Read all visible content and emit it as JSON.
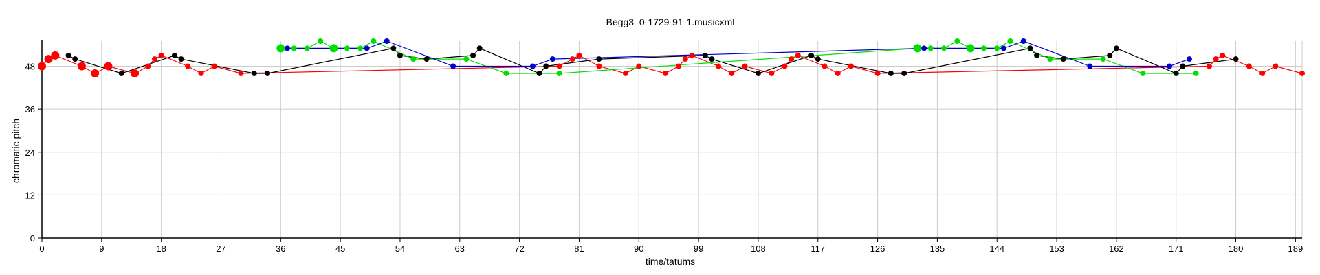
{
  "chart_data": {
    "type": "scatter",
    "title": "Begg3_0-1729-91-1.musicxml",
    "xlabel": "time/tatums",
    "ylabel": "chromatic pitch",
    "xlim": [
      0,
      190
    ],
    "ylim": [
      0,
      55
    ],
    "xticks": [
      0,
      9,
      18,
      27,
      36,
      45,
      54,
      63,
      72,
      81,
      90,
      99,
      108,
      117,
      126,
      135,
      144,
      153,
      162,
      171,
      180,
      189
    ],
    "yticks": [
      0,
      12,
      24,
      36,
      48
    ],
    "grid": true,
    "colors": {
      "red": "#ff0000",
      "black": "#000000",
      "green": "#00e000",
      "blue": "#0000cc",
      "grid": "#cccccc"
    },
    "series": [
      {
        "color": "red",
        "points": [
          [
            0,
            48,
            1
          ],
          [
            1,
            50,
            1
          ],
          [
            2,
            51,
            1
          ],
          [
            6,
            48,
            1
          ],
          [
            8,
            46,
            1
          ],
          [
            10,
            48,
            1
          ],
          [
            14,
            46,
            1
          ],
          [
            16,
            48,
            0
          ],
          [
            17,
            50,
            0
          ],
          [
            18,
            51,
            0
          ],
          [
            22,
            48,
            0
          ],
          [
            24,
            46,
            0
          ],
          [
            26,
            48,
            0
          ],
          [
            30,
            46,
            0
          ],
          [
            78,
            48,
            0
          ],
          [
            80,
            50,
            0
          ],
          [
            81,
            51,
            0
          ],
          [
            84,
            48,
            0
          ],
          [
            88,
            46,
            0
          ],
          [
            90,
            48,
            0
          ],
          [
            94,
            46,
            0
          ],
          [
            96,
            48,
            0
          ],
          [
            97,
            50,
            0
          ],
          [
            98,
            51,
            0
          ],
          [
            102,
            48,
            0
          ],
          [
            104,
            46,
            0
          ],
          [
            106,
            48,
            0
          ],
          [
            110,
            46,
            0
          ],
          [
            112,
            48,
            0
          ],
          [
            113,
            50,
            0
          ],
          [
            114,
            51,
            0
          ],
          [
            118,
            48,
            0
          ],
          [
            120,
            46,
            0
          ],
          [
            122,
            48,
            0
          ],
          [
            126,
            46,
            0
          ],
          [
            176,
            48,
            0
          ],
          [
            177,
            50,
            0
          ],
          [
            178,
            51,
            0
          ],
          [
            182,
            48,
            0
          ],
          [
            184,
            46,
            0
          ],
          [
            186,
            48,
            0
          ],
          [
            190,
            46,
            0
          ]
        ]
      },
      {
        "color": "black",
        "points": [
          [
            4,
            51,
            0
          ],
          [
            5,
            50,
            0
          ],
          [
            12,
            46,
            0
          ],
          [
            20,
            51,
            0
          ],
          [
            21,
            50,
            0
          ],
          [
            32,
            46,
            0
          ],
          [
            34,
            46,
            0
          ],
          [
            53,
            53,
            0
          ],
          [
            54,
            51,
            0
          ],
          [
            58,
            50,
            0
          ],
          [
            65,
            51,
            0
          ],
          [
            66,
            53,
            0
          ],
          [
            75,
            46,
            0
          ],
          [
            76,
            48,
            0
          ],
          [
            84,
            50,
            0
          ],
          [
            100,
            51,
            0
          ],
          [
            101,
            50,
            0
          ],
          [
            108,
            46,
            0
          ],
          [
            116,
            51,
            0
          ],
          [
            117,
            50,
            0
          ],
          [
            128,
            46,
            0
          ],
          [
            130,
            46,
            0
          ],
          [
            149,
            53,
            0
          ],
          [
            150,
            51,
            0
          ],
          [
            154,
            50,
            0
          ],
          [
            161,
            51,
            0
          ],
          [
            162,
            53,
            0
          ],
          [
            171,
            46,
            0
          ],
          [
            172,
            48,
            0
          ],
          [
            180,
            50,
            0
          ]
        ]
      },
      {
        "color": "green",
        "points": [
          [
            36,
            53,
            1
          ],
          [
            38,
            53,
            0
          ],
          [
            40,
            53,
            0
          ],
          [
            42,
            55,
            0
          ],
          [
            44,
            53,
            1
          ],
          [
            46,
            53,
            0
          ],
          [
            48,
            53,
            0
          ],
          [
            50,
            55,
            0
          ],
          [
            56,
            50,
            0
          ],
          [
            64,
            50,
            0
          ],
          [
            70,
            46,
            0
          ],
          [
            78,
            46,
            0
          ],
          [
            132,
            53,
            1
          ],
          [
            134,
            53,
            0
          ],
          [
            136,
            53,
            0
          ],
          [
            138,
            55,
            0
          ],
          [
            140,
            53,
            1
          ],
          [
            142,
            53,
            0
          ],
          [
            144,
            53,
            0
          ],
          [
            146,
            55,
            0
          ],
          [
            152,
            50,
            0
          ],
          [
            160,
            50,
            0
          ],
          [
            166,
            46,
            0
          ],
          [
            174,
            46,
            0
          ]
        ]
      },
      {
        "color": "blue",
        "points": [
          [
            37,
            53,
            0
          ],
          [
            49,
            53,
            0
          ],
          [
            52,
            55,
            0
          ],
          [
            62,
            48,
            0
          ],
          [
            74,
            48,
            0
          ],
          [
            77,
            50,
            0
          ],
          [
            133,
            53,
            0
          ],
          [
            145,
            53,
            0
          ],
          [
            148,
            55,
            0
          ],
          [
            158,
            48,
            0
          ],
          [
            170,
            48,
            0
          ],
          [
            173,
            50,
            0
          ]
        ]
      }
    ]
  }
}
